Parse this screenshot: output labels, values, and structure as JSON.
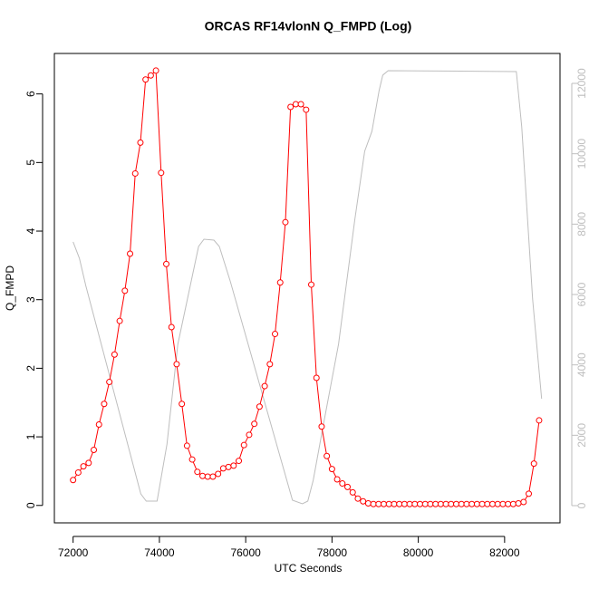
{
  "chart_data": {
    "type": "line",
    "title": "ORCAS RF14vlonN Q_FMPD (Log)",
    "x_label": "UTC Seconds",
    "y_label": "Q_FMPD",
    "xlim": [
      71566,
      83284
    ],
    "xticks": [
      72000,
      74000,
      76000,
      78000,
      80000,
      82000
    ],
    "ylim": [
      -0.254,
      6.59
    ],
    "yticks": [
      0,
      1,
      2,
      3,
      4,
      5,
      6
    ],
    "y2lim": [
      -489,
      12850
    ],
    "y2ticks": [
      0,
      2000,
      4000,
      6000,
      8000,
      10000,
      12000
    ],
    "y2_color": "#bebebe",
    "series": [
      {
        "color": "#ff0000",
        "markers": true,
        "x": [
          72000,
          72120,
          72240,
          72360,
          72480,
          72600,
          72720,
          72840,
          72960,
          73080,
          73200,
          73320,
          73440,
          73560,
          73680,
          73800,
          73920,
          74040,
          74160,
          74280,
          74400,
          74520,
          74640,
          74760,
          74880,
          75000,
          75120,
          75240,
          75360,
          75480,
          75600,
          75720,
          75840,
          75960,
          76080,
          76200,
          76320,
          76440,
          76560,
          76680,
          76800,
          76920,
          77040,
          77160,
          77280,
          77400,
          77520,
          77640,
          77760,
          77880,
          78000,
          78120,
          78240,
          78360,
          78480,
          78600,
          78720,
          78840,
          78960,
          79080,
          79200,
          79320,
          79440,
          79560,
          79680,
          79800,
          79920,
          80040,
          80160,
          80280,
          80400,
          80520,
          80640,
          80760,
          80880,
          81000,
          81120,
          81240,
          81360,
          81480,
          81600,
          81720,
          81840,
          81960,
          82080,
          82200,
          82320,
          82440,
          82560,
          82680,
          82800
        ],
        "values": [
          0.37,
          0.48,
          0.57,
          0.62,
          0.81,
          1.18,
          1.48,
          1.8,
          2.2,
          2.69,
          3.13,
          3.67,
          4.84,
          5.29,
          6.21,
          6.27,
          6.34,
          4.85,
          3.52,
          2.6,
          2.06,
          1.48,
          0.87,
          0.67,
          0.49,
          0.43,
          0.42,
          0.42,
          0.46,
          0.54,
          0.56,
          0.58,
          0.65,
          0.88,
          1.03,
          1.19,
          1.44,
          1.74,
          2.06,
          2.5,
          3.25,
          4.13,
          5.81,
          5.85,
          5.85,
          5.77,
          3.22,
          1.86,
          1.15,
          0.72,
          0.53,
          0.38,
          0.32,
          0.27,
          0.19,
          0.1,
          0.06,
          0.03,
          0.02,
          0.02,
          0.02,
          0.02,
          0.02,
          0.02,
          0.02,
          0.02,
          0.02,
          0.02,
          0.02,
          0.02,
          0.02,
          0.02,
          0.02,
          0.02,
          0.02,
          0.02,
          0.02,
          0.02,
          0.02,
          0.02,
          0.02,
          0.02,
          0.02,
          0.02,
          0.02,
          0.02,
          0.03,
          0.05,
          0.17,
          0.61,
          1.24
        ]
      },
      {
        "color": "#bebebe",
        "axis": "y2",
        "markers": false,
        "x": [
          72000,
          72146,
          72293,
          73569,
          73695,
          73946,
          74176,
          74427,
          74908,
          75033,
          75264,
          75389,
          75640,
          77084,
          77314,
          77439,
          77565,
          77795,
          78151,
          78527,
          78757,
          78925,
          79092,
          79176,
          79301,
          82272,
          82397,
          82649,
          82858
        ],
        "values": [
          7494,
          7030,
          6258,
          335,
          129,
          129,
          1750,
          4584,
          7365,
          7571,
          7545,
          7365,
          6387,
          155,
          52,
          129,
          721,
          2266,
          4584,
          8112,
          10069,
          10636,
          11795,
          12233,
          12362,
          12336,
          10765,
          5872,
          3039
        ]
      }
    ]
  }
}
